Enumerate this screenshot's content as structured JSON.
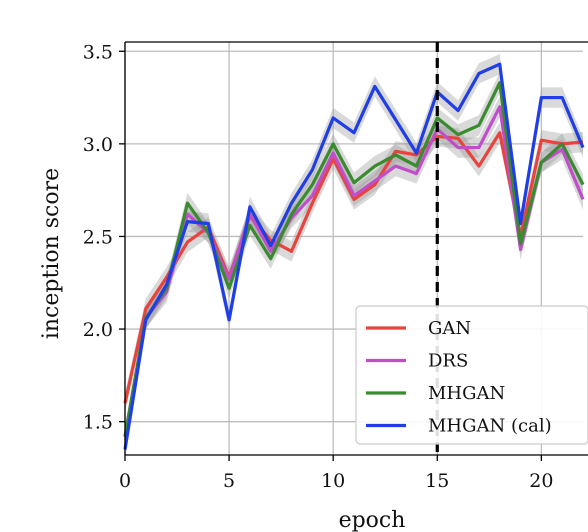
{
  "chart_data": {
    "type": "line",
    "xlabel": "epoch",
    "ylabel": "inception score",
    "xlim": [
      0,
      22
    ],
    "ylim": [
      1.32,
      3.55
    ],
    "x_ticks": [
      0,
      5,
      10,
      15,
      20
    ],
    "y_ticks": [
      1.5,
      2.0,
      2.5,
      3.0,
      3.5
    ],
    "grid": true,
    "legend_position": "lower-right",
    "vertical_line": {
      "x": 15,
      "style": "dashed",
      "color": "#000000"
    },
    "x": [
      0,
      1,
      2,
      3,
      4,
      5,
      6,
      7,
      8,
      9,
      10,
      11,
      12,
      13,
      14,
      15,
      16,
      17,
      18,
      19,
      20,
      21,
      22
    ],
    "series": [
      {
        "name": "GAN",
        "color": "#e8433c",
        "values": [
          1.6,
          2.11,
          2.28,
          2.47,
          2.55,
          2.28,
          2.61,
          2.48,
          2.42,
          2.68,
          2.92,
          2.7,
          2.78,
          2.96,
          2.94,
          3.04,
          3.03,
          2.88,
          3.06,
          2.5,
          3.02,
          3.0,
          3.01
        ]
      },
      {
        "name": "DRS",
        "color": "#c04ec8",
        "values": [
          1.42,
          2.06,
          2.2,
          2.62,
          2.52,
          2.27,
          2.62,
          2.42,
          2.6,
          2.72,
          2.95,
          2.72,
          2.8,
          2.88,
          2.84,
          3.08,
          2.98,
          2.98,
          3.2,
          2.43,
          2.9,
          2.97,
          2.7
        ]
      },
      {
        "name": "MHGAN",
        "color": "#3a8a30",
        "values": [
          1.42,
          2.06,
          2.22,
          2.68,
          2.52,
          2.22,
          2.56,
          2.38,
          2.62,
          2.78,
          3.0,
          2.79,
          2.88,
          2.94,
          2.88,
          3.14,
          3.05,
          3.1,
          3.33,
          2.46,
          2.9,
          3.0,
          2.78
        ]
      },
      {
        "name": "MHGAN (cal)",
        "color": "#1f3ee6",
        "values": [
          1.35,
          2.05,
          2.24,
          2.58,
          2.57,
          2.05,
          2.66,
          2.45,
          2.68,
          2.86,
          3.14,
          3.06,
          3.31,
          3.13,
          2.95,
          3.28,
          3.18,
          3.38,
          3.43,
          2.57,
          3.25,
          3.25,
          2.98
        ]
      }
    ]
  }
}
